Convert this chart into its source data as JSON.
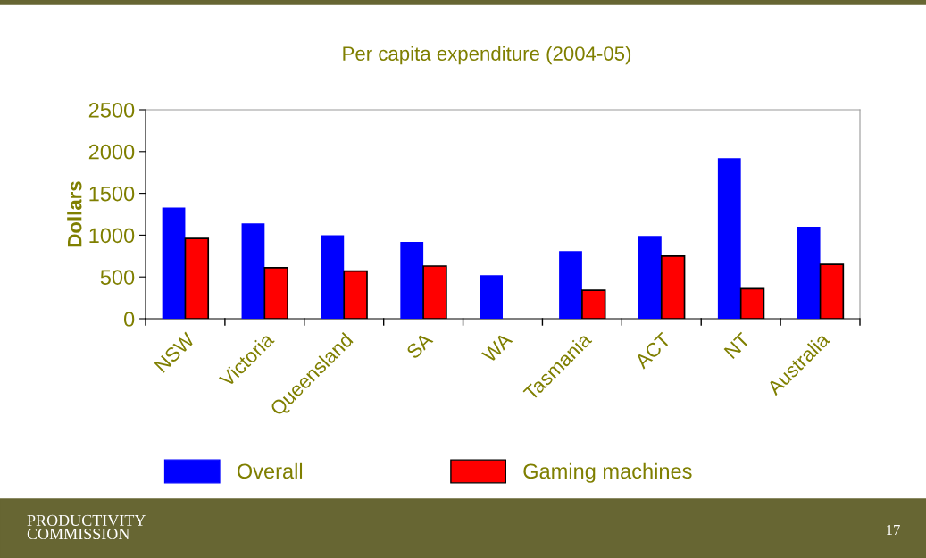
{
  "chart_data": {
    "type": "bar",
    "title": "Per capita expenditure (2004-05)",
    "ylabel": "Dollars",
    "categories": [
      "NSW",
      "Victoria",
      "Queensland",
      "SA",
      "WA",
      "Tasmania",
      "ACT",
      "NT",
      "Australia"
    ],
    "series": [
      {
        "name": "Overall",
        "color": "#0000ff",
        "values": [
          1330,
          1140,
          1000,
          920,
          520,
          810,
          990,
          1920,
          1100
        ]
      },
      {
        "name": "Gaming machines",
        "color": "#ff0000",
        "values": [
          960,
          610,
          570,
          630,
          null,
          340,
          750,
          360,
          650
        ]
      }
    ],
    "ylim": [
      0,
      2500
    ],
    "yticks": [
      0,
      500,
      1000,
      1500,
      2000,
      2500
    ],
    "grid": false,
    "legend": "bottom",
    "annotations": [
      "PRODUCTIVITY COMMISSION",
      "17"
    ]
  }
}
